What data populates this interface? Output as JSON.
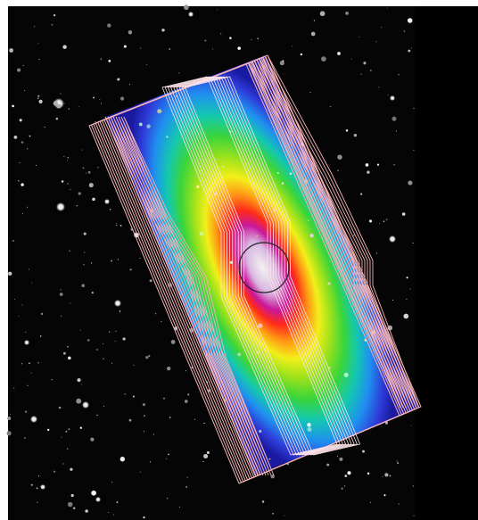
{
  "image": {
    "subject": "overlay",
    "colors": {
      "outer_border": "#ffffff",
      "sky": "#050505",
      "blank_panel": "#000000",
      "footprint_outline": "#f4b4b8",
      "inner_outline": "#ffe4e8",
      "aperture_circle": "#222222",
      "heat_stops": [
        "#1a1aa0",
        "#2e3ad8",
        "#1f8ff0",
        "#14c8b0",
        "#3ad53a",
        "#9ee21c",
        "#f2ef1a",
        "#ff9a14",
        "#ff2a1a",
        "#c8189c",
        "#d9b6e0",
        "#f2f2f2"
      ]
    }
  }
}
